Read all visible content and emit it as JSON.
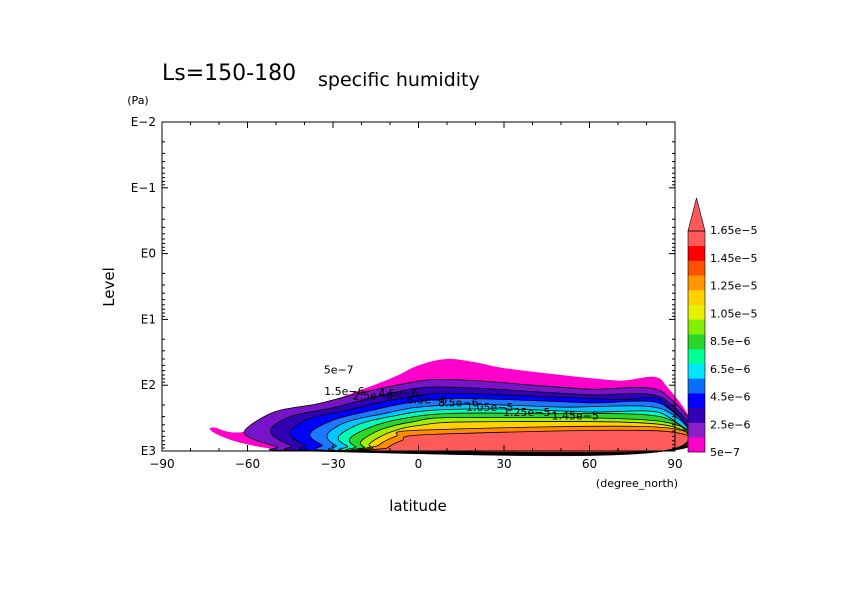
{
  "title": {
    "main": "Ls=150-180",
    "sub": "specific humidity"
  },
  "chart_data": {
    "type": "heatmap",
    "xlabel": "latitude",
    "x_unit": "(degree_north)",
    "ylabel": "Level",
    "y_unit": "(Pa)",
    "y_scale": "log",
    "xlim": [
      -90,
      90
    ],
    "ylim_pa": [
      0.01,
      1000
    ],
    "x_ticks": [
      -90,
      -60,
      -30,
      0,
      30,
      60,
      90
    ],
    "x_tick_labels": [
      "−90",
      "−60",
      "−30",
      "0",
      "30",
      "60",
      "90"
    ],
    "y_ticks_pa": [
      0.01,
      0.1,
      1,
      10,
      100,
      1000
    ],
    "y_tick_labels": [
      "E−2",
      "E−1",
      "E0",
      "E1",
      "E2",
      "E3"
    ],
    "colorbar_levels": [
      "5e−7",
      "2.5e−6",
      "4.5e−6",
      "6.5e−6",
      "8.5e−6",
      "1.05e−5",
      "1.25e−5",
      "1.45e−5",
      "1.65e−5"
    ],
    "colorbar_colors": [
      "#ff00cc",
      "#8c1ec8",
      "#3200b4",
      "#0000ff",
      "#0a6efa",
      "#00e6ff",
      "#00ff96",
      "#2bd62b",
      "#82f000",
      "#e6f000",
      "#ffd200",
      "#ff9600",
      "#ff5000",
      "#ff0000",
      "#ff5a5a"
    ],
    "contour_labels": [
      "5e−7",
      "1.5e−6",
      "2.5e−6",
      "4.5e−6",
      "6.5e−6",
      "8.5e−6",
      "1.05e−5",
      "1.25e−5",
      "1.45e−5"
    ],
    "bands": [
      {
        "level": "5e−7",
        "color": "#ff00cc",
        "outline": [
          [
            -72,
            440
          ],
          [
            -60,
            500
          ],
          [
            -30,
            170
          ],
          [
            -10,
            80
          ],
          [
            0,
            50
          ],
          [
            10,
            40
          ],
          [
            20,
            45
          ],
          [
            30,
            55
          ],
          [
            50,
            70
          ],
          [
            70,
            85
          ],
          [
            86,
            90
          ],
          [
            86,
            1000
          ],
          [
            -40,
            1000
          ],
          [
            -45,
            1000
          ],
          [
            -55,
            880
          ],
          [
            -65,
            700
          ],
          [
            -72,
            520
          ]
        ]
      },
      {
        "level": "1.5e−6",
        "color": "#7814c8",
        "outline": [
          [
            -60,
            440
          ],
          [
            -50,
            250
          ],
          [
            -35,
            190
          ],
          [
            -20,
            130
          ],
          [
            -5,
            95
          ],
          [
            5,
            82
          ],
          [
            20,
            85
          ],
          [
            40,
            100
          ],
          [
            60,
            115
          ],
          [
            86,
            130
          ],
          [
            86,
            1000
          ],
          [
            -40,
            1000
          ],
          [
            -50,
            850
          ],
          [
            -60,
            600
          ]
        ]
      },
      {
        "level": "2.5e−6",
        "color": "#3200b4",
        "outline": [
          [
            -52,
            500
          ],
          [
            -45,
            300
          ],
          [
            -30,
            220
          ],
          [
            -15,
            150
          ],
          [
            0,
            110
          ],
          [
            15,
            108
          ],
          [
            40,
            125
          ],
          [
            60,
            140
          ],
          [
            86,
            160
          ],
          [
            86,
            1000
          ],
          [
            -35,
            1000
          ],
          [
            -45,
            820
          ]
        ]
      },
      {
        "level": "3.5e−6",
        "color": "#0000ff",
        "outline": [
          [
            -45,
            520
          ],
          [
            -38,
            320
          ],
          [
            -25,
            240
          ],
          [
            -10,
            170
          ],
          [
            5,
            135
          ],
          [
            20,
            135
          ],
          [
            45,
            150
          ],
          [
            70,
            165
          ],
          [
            86,
            180
          ],
          [
            86,
            1000
          ],
          [
            -30,
            1000
          ],
          [
            -40,
            800
          ]
        ]
      },
      {
        "level": "4.5e−6",
        "color": "#1e78ff",
        "outline": [
          [
            -38,
            540
          ],
          [
            -30,
            340
          ],
          [
            -18,
            250
          ],
          [
            -5,
            190
          ],
          [
            10,
            160
          ],
          [
            30,
            165
          ],
          [
            60,
            185
          ],
          [
            86,
            200
          ],
          [
            86,
            1000
          ],
          [
            -25,
            1000
          ],
          [
            -34,
            800
          ]
        ]
      },
      {
        "level": "5.5e−6",
        "color": "#00c8ff",
        "outline": [
          [
            -32,
            560
          ],
          [
            -25,
            360
          ],
          [
            -12,
            270
          ],
          [
            0,
            215
          ],
          [
            20,
            195
          ],
          [
            50,
            215
          ],
          [
            86,
            235
          ],
          [
            86,
            1000
          ],
          [
            -21,
            1000
          ],
          [
            -29,
            820
          ]
        ]
      },
      {
        "level": "6.5e−6",
        "color": "#00ffb4",
        "outline": [
          [
            -28,
            600
          ],
          [
            -20,
            380
          ],
          [
            -8,
            290
          ],
          [
            5,
            240
          ],
          [
            30,
            230
          ],
          [
            60,
            255
          ],
          [
            86,
            275
          ],
          [
            86,
            1000
          ],
          [
            -18,
            1000
          ],
          [
            -25,
            840
          ]
        ]
      },
      {
        "level": "8.5e−6",
        "color": "#2bd62b",
        "outline": [
          [
            -24,
            640
          ],
          [
            -16,
            420
          ],
          [
            -5,
            320
          ],
          [
            10,
            270
          ],
          [
            40,
            270
          ],
          [
            86,
            310
          ],
          [
            86,
            1000
          ],
          [
            -16,
            1000
          ],
          [
            -22,
            860
          ]
        ]
      },
      {
        "level": "1.05e−5",
        "color": "#a0f000",
        "outline": [
          [
            -20,
            700
          ],
          [
            -13,
            470
          ],
          [
            -2,
            360
          ],
          [
            15,
            310
          ],
          [
            86,
            360
          ],
          [
            86,
            1000
          ],
          [
            -15,
            1000
          ],
          [
            -19,
            880
          ]
        ]
      },
      {
        "level": "1.25e−5",
        "color": "#ffd200",
        "outline": [
          [
            -17,
            760
          ],
          [
            -10,
            520
          ],
          [
            0,
            410
          ],
          [
            20,
            360
          ],
          [
            86,
            400
          ],
          [
            86,
            1000
          ],
          [
            -14,
            1000
          ],
          [
            -16,
            900
          ]
        ]
      },
      {
        "level": "1.45e−5",
        "color": "#ff8c00",
        "outline": [
          [
            -14,
            820
          ],
          [
            -8,
            600
          ],
          [
            2,
            480
          ],
          [
            86,
            440
          ],
          [
            86,
            1000
          ],
          [
            -13,
            1000
          ]
        ]
      },
      {
        "level": "1.65e−5",
        "color": "#ff5a5a",
        "outline": [
          [
            -11,
            900
          ],
          [
            -6,
            700
          ],
          [
            5,
            560
          ],
          [
            86,
            500
          ],
          [
            86,
            1000
          ],
          [
            -12,
            1000
          ]
        ]
      }
    ]
  }
}
